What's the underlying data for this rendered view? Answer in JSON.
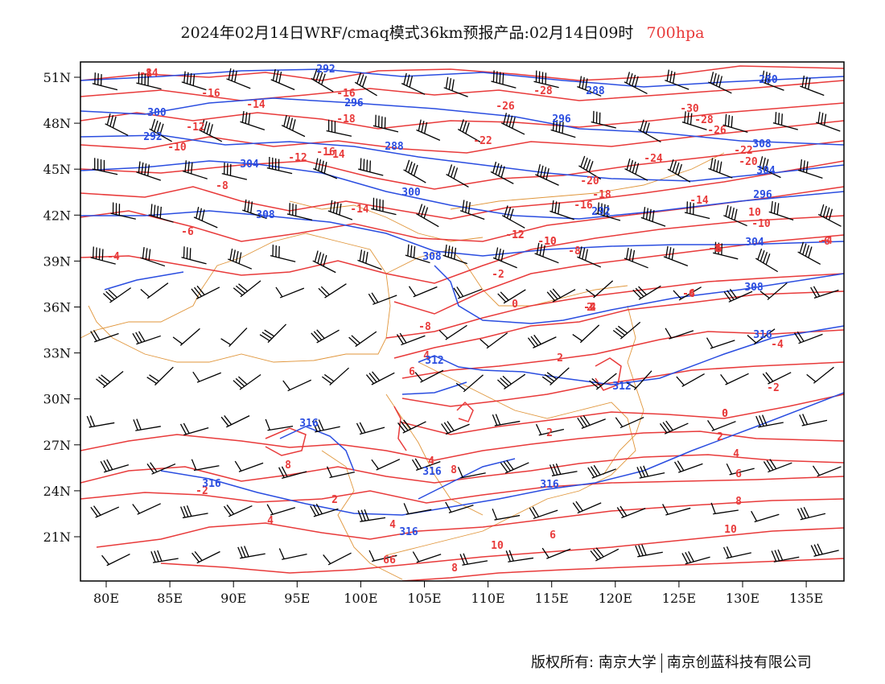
{
  "title": {
    "main": "2024年02月14日WRF/cmaq模式36km预报产品:02月14日09时",
    "level": "700hpa"
  },
  "colors": {
    "temperature": "#e83a3a",
    "height": "#2a4de0",
    "boundary": "#e0953a",
    "barb": "#000000",
    "frame": "#000000"
  },
  "map": {
    "lon_range": [
      78,
      138
    ],
    "lat_range": [
      18,
      52
    ],
    "lat_ticks": [
      "51N",
      "48N",
      "45N",
      "42N",
      "39N",
      "36N",
      "33N",
      "30N",
      "27N",
      "24N",
      "21N"
    ],
    "lon_ticks": [
      "80E",
      "85E",
      "90E",
      "95E",
      "100E",
      "105E",
      "110E",
      "115E",
      "120E",
      "125E",
      "130E",
      "135E"
    ]
  },
  "height_labels": [
    "292",
    "288",
    "280",
    "296",
    "300",
    "296",
    "292",
    "288",
    "304",
    "308",
    "300",
    "304",
    "296",
    "292",
    "304",
    "308",
    "308",
    "308",
    "312",
    "312",
    "316",
    "316",
    "316",
    "316",
    "316",
    "316"
  ],
  "temp_labels": [
    "-14",
    "-16",
    "-14",
    "-12",
    "-10",
    "-8",
    "-6",
    "-4",
    "-16",
    "-18",
    "-16",
    "-14",
    "-12",
    "-14",
    "-12",
    "-10",
    "-26",
    "-28",
    "-30",
    "-28",
    "-26",
    "-22",
    "-24",
    "-20",
    "-22",
    "-20",
    "-18",
    "-16",
    "-14",
    "-12",
    "-10",
    "-8",
    "-6",
    "-4",
    "-2",
    "0",
    "2",
    "2",
    "4",
    "6",
    "8",
    "10",
    "-6",
    "-8",
    "-4",
    "-2",
    "0",
    "2",
    "4",
    "6",
    "8",
    "10",
    "-6",
    "-4",
    "-2",
    "0",
    "2",
    "4",
    "6",
    "8",
    "10",
    "-10",
    "-8",
    "-6",
    "-4",
    "-2",
    "4",
    "6",
    "8",
    "2",
    "4",
    "6",
    "8"
  ],
  "credit": {
    "left": "版权所有: 南京大学",
    "right": "南京创蓝科技有限公司"
  }
}
